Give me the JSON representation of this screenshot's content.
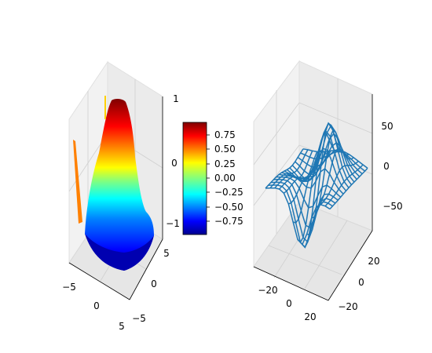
{
  "chart_data": [
    {
      "type": "surface",
      "colormap": "jet",
      "x_ticks": [
        "−5",
        "0",
        "5"
      ],
      "y_ticks": [
        "−5",
        "0",
        "5"
      ],
      "z_ticks": [
        "−1",
        "0",
        "1"
      ],
      "xlim": [
        -5,
        5
      ],
      "ylim": [
        -5,
        5
      ],
      "zlim": [
        -1.01,
        1.01
      ],
      "colorbar": {
        "ticks": [
          "0.75",
          "0.50",
          "0.25",
          "0.00",
          "−0.25",
          "−0.50",
          "−0.75"
        ],
        "range": [
          -0.99,
          0.99
        ]
      }
    },
    {
      "type": "wireframe",
      "color": "#1f77b4",
      "x_ticks": [
        "−20",
        "0",
        "20"
      ],
      "y_ticks": [
        "−20",
        "0",
        "20"
      ],
      "z_ticks": [
        "−50",
        "0",
        "50"
      ],
      "xlim": [
        -30,
        30
      ],
      "ylim": [
        -30,
        30
      ],
      "zlim": [
        -75,
        75
      ]
    }
  ]
}
